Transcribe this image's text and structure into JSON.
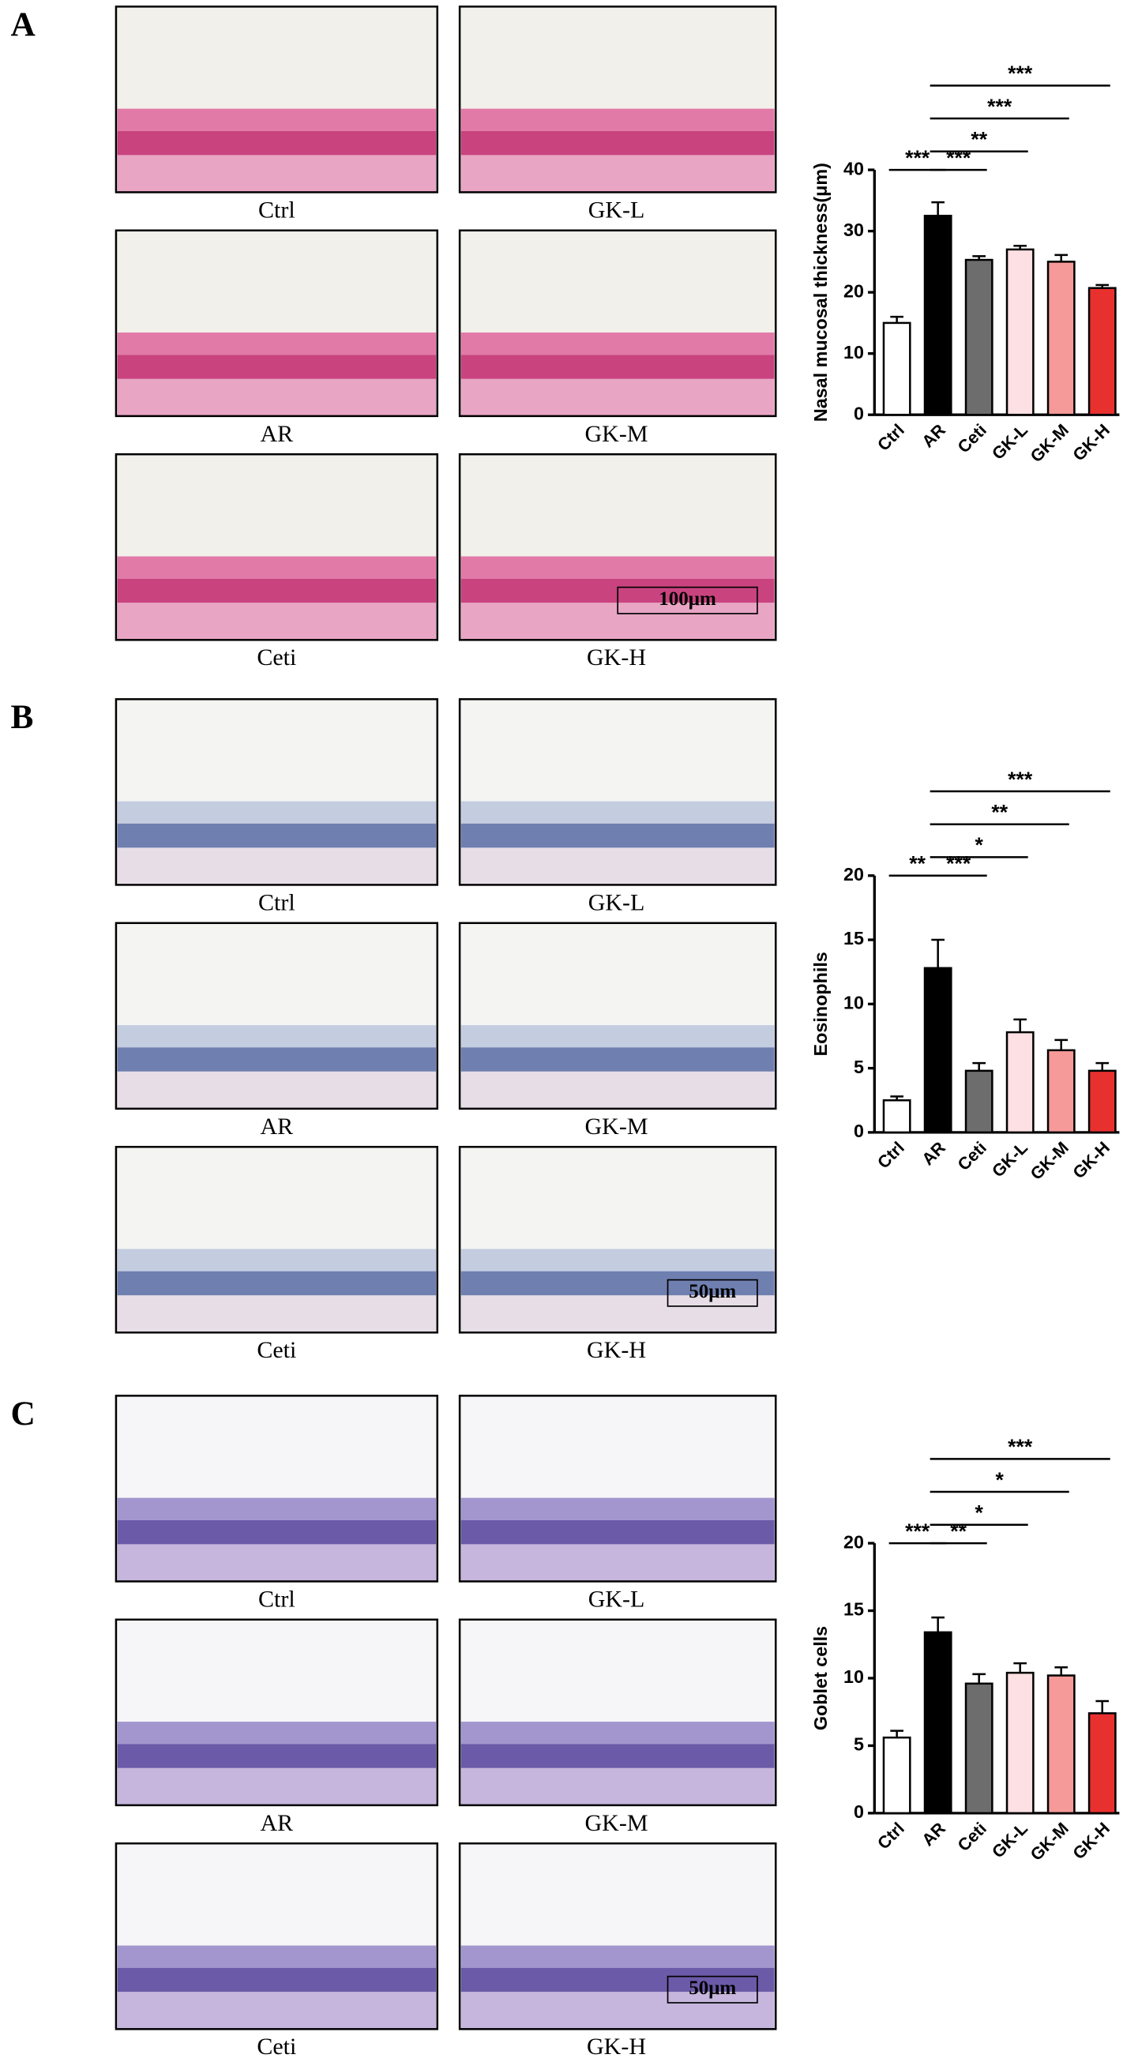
{
  "panels": [
    {
      "label": "A",
      "captions": [
        "Ctrl",
        "GK-L",
        "AR",
        "GK-M",
        "Ceti",
        "GK-H"
      ],
      "scale_bar": "100μm"
    },
    {
      "label": "B",
      "captions": [
        "Ctrl",
        "GK-L",
        "AR",
        "GK-M",
        "Ceti",
        "GK-H"
      ],
      "scale_bar": "50μm"
    },
    {
      "label": "C",
      "captions": [
        "Ctrl",
        "GK-L",
        "AR",
        "GK-M",
        "Ceti",
        "GK-H"
      ],
      "scale_bar": "50μm"
    }
  ],
  "chart_data": [
    {
      "type": "bar",
      "y_label": "Nasal mucosal thickness(μm)",
      "categories": [
        "Ctrl",
        "AR",
        "Ceti",
        "GK-L",
        "GK-M",
        "GK-H"
      ],
      "values": [
        15,
        32.5,
        25.3,
        27,
        25,
        20.7
      ],
      "errors": [
        1,
        2.2,
        0.6,
        0.6,
        1.1,
        0.5
      ],
      "colors": [
        "#ffffff",
        "#000000",
        "#6d6d6d",
        "#fde0e3",
        "#f59a98",
        "#e8312f"
      ],
      "ylim": [
        0,
        40
      ],
      "yticks": [
        0,
        10,
        20,
        30,
        40
      ],
      "annotations": [
        {
          "text": "***",
          "from": "Ctrl",
          "to": "AR"
        },
        {
          "text": "***",
          "from": "AR",
          "to": "Ceti"
        },
        {
          "text": "**",
          "from": "AR",
          "to": "GK-L"
        },
        {
          "text": "***",
          "from": "AR",
          "to": "GK-M"
        },
        {
          "text": "***",
          "from": "AR",
          "to": "GK-H"
        }
      ]
    },
    {
      "type": "bar",
      "y_label": "Eosinophils",
      "categories": [
        "Ctrl",
        "AR",
        "Ceti",
        "GK-L",
        "GK-M",
        "GK-H"
      ],
      "values": [
        2.5,
        12.8,
        4.8,
        7.8,
        6.4,
        4.8
      ],
      "errors": [
        0.3,
        2.2,
        0.6,
        1,
        0.8,
        0.6
      ],
      "colors": [
        "#ffffff",
        "#000000",
        "#6d6d6d",
        "#fde0e3",
        "#f59a98",
        "#e8312f"
      ],
      "ylim": [
        0,
        20
      ],
      "yticks": [
        0,
        5,
        10,
        15,
        20
      ],
      "annotations": [
        {
          "text": "**",
          "from": "Ctrl",
          "to": "AR"
        },
        {
          "text": "***",
          "from": "AR",
          "to": "Ceti"
        },
        {
          "text": "*",
          "from": "AR",
          "to": "GK-L"
        },
        {
          "text": "**",
          "from": "AR",
          "to": "GK-M"
        },
        {
          "text": "***",
          "from": "AR",
          "to": "GK-H"
        }
      ]
    },
    {
      "type": "bar",
      "y_label": "Goblet cells",
      "categories": [
        "Ctrl",
        "AR",
        "Ceti",
        "GK-L",
        "GK-M",
        "GK-H"
      ],
      "values": [
        5.6,
        13.4,
        9.6,
        10.4,
        10.2,
        7.4
      ],
      "errors": [
        0.5,
        1.1,
        0.7,
        0.7,
        0.6,
        0.9
      ],
      "colors": [
        "#ffffff",
        "#000000",
        "#6d6d6d",
        "#fde0e3",
        "#f59a98",
        "#e8312f"
      ],
      "ylim": [
        0,
        20
      ],
      "yticks": [
        0,
        5,
        10,
        15,
        20
      ],
      "annotations": [
        {
          "text": "***",
          "from": "Ctrl",
          "to": "AR"
        },
        {
          "text": "**",
          "from": "AR",
          "to": "Ceti"
        },
        {
          "text": "*",
          "from": "AR",
          "to": "GK-L"
        },
        {
          "text": "*",
          "from": "AR",
          "to": "GK-M"
        },
        {
          "text": "***",
          "from": "AR",
          "to": "GK-H"
        }
      ]
    }
  ]
}
